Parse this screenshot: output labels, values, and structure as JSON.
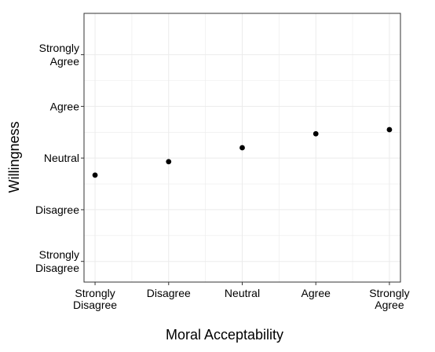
{
  "chart_data": {
    "type": "scatter",
    "title": "",
    "xlabel": "Moral Acceptability",
    "ylabel": "Willingness",
    "x_categories": [
      [
        "Strongly",
        "Disagree"
      ],
      [
        "Disagree"
      ],
      [
        "Neutral"
      ],
      [
        "Agree"
      ],
      [
        "Strongly",
        "Agree"
      ]
    ],
    "y_categories": [
      [
        "Strongly",
        "Disagree"
      ],
      [
        "Disagree"
      ],
      [
        "Neutral"
      ],
      [
        "Agree"
      ],
      [
        "Strongly",
        "Agree"
      ]
    ],
    "x_values": [
      1,
      2,
      3,
      4,
      5
    ],
    "y_values": [
      2.67,
      2.93,
      3.2,
      3.47,
      3.55
    ],
    "xlim": [
      0.85,
      5.15
    ],
    "ylim": [
      0.6,
      5.8
    ],
    "grid": true,
    "legend": "none",
    "colors": {
      "points": "#000000",
      "grid": "#ebebeb",
      "border": "#333333",
      "background": "#ffffff"
    }
  }
}
